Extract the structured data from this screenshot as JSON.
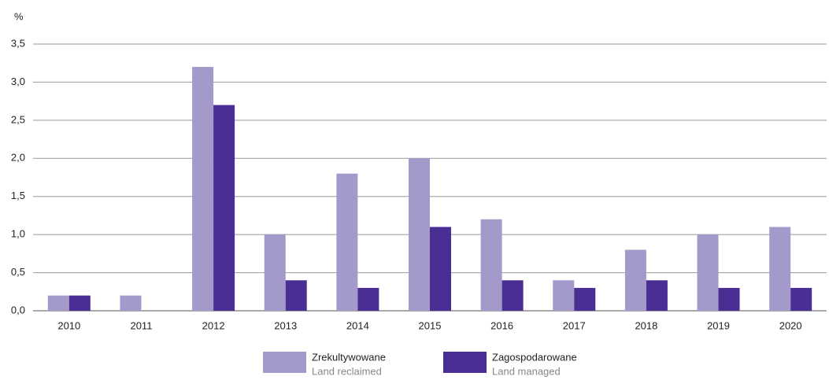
{
  "chart_data": {
    "type": "bar",
    "y_unit": "%",
    "categories": [
      "2010",
      "2011",
      "2012",
      "2013",
      "2014",
      "2015",
      "2016",
      "2017",
      "2018",
      "2019",
      "2020"
    ],
    "series": [
      {
        "name": "Zrekultywowane",
        "name_en": "Land reclaimed",
        "color": "#a499cb",
        "values": [
          0.2,
          0.2,
          3.2,
          1.0,
          1.8,
          2.0,
          1.2,
          0.4,
          0.8,
          1.0,
          1.1
        ]
      },
      {
        "name": "Zagospodarowane",
        "name_en": "Land managed",
        "color": "#4b2e94",
        "values": [
          0.2,
          0,
          2.7,
          0.4,
          0.3,
          1.1,
          0.4,
          0.3,
          0.4,
          0.3,
          0.3
        ]
      }
    ],
    "ylim": [
      0,
      3.5
    ],
    "yticks": [
      {
        "value": 0,
        "label": "0,0"
      },
      {
        "value": 0.5,
        "label": "0,5"
      },
      {
        "value": 1,
        "label": "1,0"
      },
      {
        "value": 1.5,
        "label": "1,5"
      },
      {
        "value": 2,
        "label": "2,0"
      },
      {
        "value": 2.5,
        "label": "2,5"
      },
      {
        "value": 3,
        "label": "3,0"
      },
      {
        "value": 3.5,
        "label": "3,5"
      }
    ],
    "grid": true
  }
}
